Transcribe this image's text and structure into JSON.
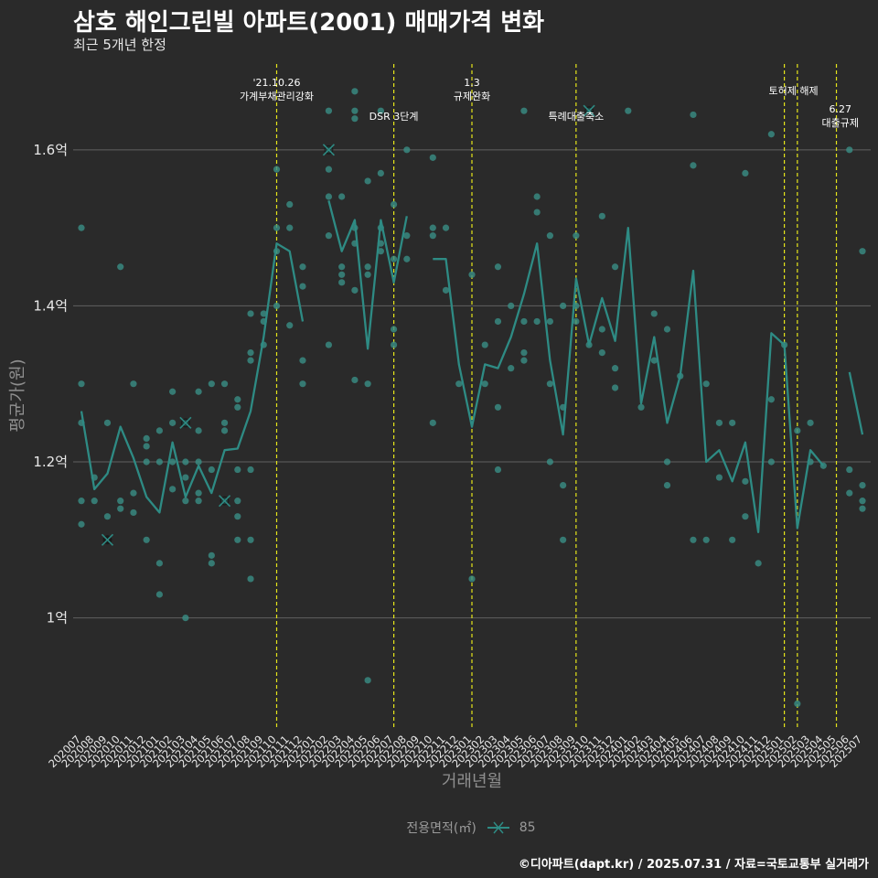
{
  "title": "삼호 해인그린빌 아파트(2001) 매매가격 변화",
  "subtitle": "최근 5개년 한정",
  "caption": "©디아파트(dapt.kr) / 2025.07.31 / 자료=국토교통부 실거래가",
  "legend": {
    "title": "전용면적(㎡)",
    "label": "85"
  },
  "colors": {
    "background": "#2a2a2a",
    "grid": "#606060",
    "line": "#2e8b84",
    "points": "#3a8f86",
    "vline": "#e6e61a",
    "text": "#ffffff"
  },
  "chart_data": {
    "type": "line",
    "xlabel": "거래년월",
    "ylabel": "평균가(원)",
    "ylim": [
      0.86,
      1.71
    ],
    "y_ticks": [
      {
        "value": 1.0,
        "label": "1억"
      },
      {
        "value": 1.2,
        "label": "1.2억"
      },
      {
        "value": 1.4,
        "label": "1.4억"
      },
      {
        "value": 1.6,
        "label": "1.6억"
      }
    ],
    "grid": true,
    "legend_position": "bottom",
    "categories": [
      "202007",
      "202008",
      "202009",
      "202010",
      "202011",
      "202012",
      "202101",
      "202102",
      "202103",
      "202104",
      "202105",
      "202106",
      "202107",
      "202108",
      "202109",
      "202110",
      "202111",
      "202112",
      "202201",
      "202202",
      "202203",
      "202204",
      "202205",
      "202206",
      "202207",
      "202208",
      "202209",
      "202210",
      "202211",
      "202212",
      "202301",
      "202302",
      "202303",
      "202304",
      "202305",
      "202306",
      "202307",
      "202308",
      "202309",
      "202310",
      "202311",
      "202312",
      "202401",
      "202402",
      "202403",
      "202404",
      "202405",
      "202406",
      "202407",
      "202408",
      "202409",
      "202410",
      "202411",
      "202412",
      "202501",
      "202502",
      "202503",
      "202504",
      "202505",
      "202506",
      "202507"
    ],
    "series": [
      {
        "name": "85",
        "values": [
          1.265,
          1.165,
          1.185,
          1.245,
          1.205,
          1.155,
          1.135,
          1.225,
          1.155,
          1.195,
          1.16,
          1.215,
          1.217,
          1.265,
          1.36,
          1.48,
          1.47,
          1.38,
          null,
          1.535,
          1.47,
          1.51,
          1.345,
          1.51,
          1.43,
          1.515,
          null,
          1.46,
          1.46,
          1.325,
          1.245,
          1.325,
          1.32,
          1.36,
          1.415,
          1.48,
          1.33,
          1.235,
          1.435,
          1.35,
          1.41,
          1.355,
          1.5,
          1.275,
          1.36,
          1.25,
          1.31,
          1.445,
          1.2,
          1.215,
          1.175,
          1.225,
          1.11,
          1.365,
          1.35,
          1.115,
          1.215,
          1.195,
          null,
          1.315,
          1.235
        ]
      }
    ],
    "transactions": [
      [
        0,
        1.5
      ],
      [
        0,
        1.3
      ],
      [
        0,
        1.25
      ],
      [
        0,
        1.15
      ],
      [
        0,
        1.12
      ],
      [
        1,
        1.18
      ],
      [
        1,
        1.15
      ],
      [
        2,
        1.25
      ],
      [
        2,
        1.13
      ],
      [
        3,
        1.45
      ],
      [
        3,
        1.15
      ],
      [
        3,
        1.14
      ],
      [
        4,
        1.3
      ],
      [
        4,
        1.16
      ],
      [
        4,
        1.135
      ],
      [
        5,
        1.23
      ],
      [
        5,
        1.22
      ],
      [
        5,
        1.2
      ],
      [
        5,
        1.1
      ],
      [
        6,
        1.24
      ],
      [
        6,
        1.2
      ],
      [
        6,
        1.07
      ],
      [
        6,
        1.03
      ],
      [
        7,
        1.29
      ],
      [
        7,
        1.25
      ],
      [
        7,
        1.2
      ],
      [
        7,
        1.165
      ],
      [
        8,
        1.25
      ],
      [
        8,
        1.2
      ],
      [
        8,
        1.18
      ],
      [
        8,
        1.15
      ],
      [
        8,
        1.0
      ],
      [
        9,
        1.29
      ],
      [
        9,
        1.24
      ],
      [
        9,
        1.2
      ],
      [
        9,
        1.16
      ],
      [
        9,
        1.15
      ],
      [
        10,
        1.3
      ],
      [
        10,
        1.19
      ],
      [
        10,
        1.08
      ],
      [
        10,
        1.07
      ],
      [
        11,
        1.3
      ],
      [
        11,
        1.25
      ],
      [
        11,
        1.24
      ],
      [
        11,
        1.15
      ],
      [
        12,
        1.28
      ],
      [
        12,
        1.27
      ],
      [
        12,
        1.19
      ],
      [
        12,
        1.15
      ],
      [
        12,
        1.13
      ],
      [
        12,
        1.1
      ],
      [
        13,
        1.39
      ],
      [
        13,
        1.34
      ],
      [
        13,
        1.33
      ],
      [
        13,
        1.19
      ],
      [
        13,
        1.1
      ],
      [
        13,
        1.05
      ],
      [
        14,
        1.39
      ],
      [
        14,
        1.38
      ],
      [
        14,
        1.35
      ],
      [
        15,
        1.575
      ],
      [
        15,
        1.5
      ],
      [
        15,
        1.47
      ],
      [
        15,
        1.4
      ],
      [
        16,
        1.53
      ],
      [
        16,
        1.5
      ],
      [
        16,
        1.375
      ],
      [
        17,
        1.45
      ],
      [
        17,
        1.425
      ],
      [
        17,
        1.33
      ],
      [
        17,
        1.3
      ],
      [
        19,
        1.65
      ],
      [
        19,
        1.6
      ],
      [
        19,
        1.575
      ],
      [
        19,
        1.54
      ],
      [
        19,
        1.49
      ],
      [
        19,
        1.35
      ],
      [
        20,
        1.54
      ],
      [
        20,
        1.45
      ],
      [
        20,
        1.44
      ],
      [
        20,
        1.43
      ],
      [
        21,
        1.675
      ],
      [
        21,
        1.65
      ],
      [
        21,
        1.64
      ],
      [
        21,
        1.5
      ],
      [
        21,
        1.48
      ],
      [
        21,
        1.42
      ],
      [
        21,
        1.305
      ],
      [
        22,
        1.56
      ],
      [
        22,
        1.45
      ],
      [
        22,
        1.44
      ],
      [
        22,
        1.3
      ],
      [
        22,
        0.92
      ],
      [
        23,
        1.65
      ],
      [
        23,
        1.57
      ],
      [
        23,
        1.5
      ],
      [
        23,
        1.48
      ],
      [
        23,
        1.47
      ],
      [
        24,
        1.53
      ],
      [
        24,
        1.46
      ],
      [
        24,
        1.37
      ],
      [
        24,
        1.35
      ],
      [
        25,
        1.6
      ],
      [
        25,
        1.49
      ],
      [
        25,
        1.46
      ],
      [
        27,
        1.59
      ],
      [
        27,
        1.5
      ],
      [
        27,
        1.49
      ],
      [
        27,
        1.25
      ],
      [
        28,
        1.5
      ],
      [
        28,
        1.42
      ],
      [
        29,
        1.3
      ],
      [
        30,
        1.44
      ],
      [
        30,
        1.05
      ],
      [
        31,
        1.35
      ],
      [
        31,
        1.3
      ],
      [
        32,
        1.45
      ],
      [
        32,
        1.38
      ],
      [
        32,
        1.27
      ],
      [
        32,
        1.19
      ],
      [
        33,
        1.4
      ],
      [
        33,
        1.32
      ],
      [
        34,
        1.65
      ],
      [
        34,
        1.38
      ],
      [
        34,
        1.34
      ],
      [
        34,
        1.33
      ],
      [
        35,
        1.54
      ],
      [
        35,
        1.52
      ],
      [
        35,
        1.38
      ],
      [
        36,
        1.49
      ],
      [
        36,
        1.38
      ],
      [
        36,
        1.3
      ],
      [
        36,
        1.2
      ],
      [
        37,
        1.4
      ],
      [
        37,
        1.27
      ],
      [
        37,
        1.17
      ],
      [
        37,
        1.1
      ],
      [
        38,
        1.49
      ],
      [
        38,
        1.4
      ],
      [
        38,
        1.38
      ],
      [
        39,
        1.65
      ],
      [
        39,
        1.35
      ],
      [
        40,
        1.515
      ],
      [
        40,
        1.37
      ],
      [
        40,
        1.34
      ],
      [
        41,
        1.45
      ],
      [
        41,
        1.32
      ],
      [
        41,
        1.295
      ],
      [
        42,
        1.65
      ],
      [
        43,
        1.27
      ],
      [
        44,
        1.39
      ],
      [
        44,
        1.33
      ],
      [
        45,
        1.37
      ],
      [
        45,
        1.2
      ],
      [
        45,
        1.17
      ],
      [
        46,
        1.31
      ],
      [
        47,
        1.645
      ],
      [
        47,
        1.58
      ],
      [
        47,
        1.1
      ],
      [
        48,
        1.3
      ],
      [
        48,
        1.1
      ],
      [
        49,
        1.25
      ],
      [
        49,
        1.18
      ],
      [
        50,
        1.25
      ],
      [
        50,
        1.1
      ],
      [
        51,
        1.57
      ],
      [
        51,
        1.175
      ],
      [
        51,
        1.13
      ],
      [
        52,
        1.07
      ],
      [
        53,
        1.62
      ],
      [
        53,
        1.28
      ],
      [
        53,
        1.2
      ],
      [
        54,
        1.35
      ],
      [
        55,
        1.24
      ],
      [
        55,
        0.89
      ],
      [
        56,
        1.25
      ],
      [
        56,
        1.2
      ],
      [
        57,
        1.195
      ],
      [
        59,
        1.6
      ],
      [
        59,
        1.19
      ],
      [
        59,
        1.16
      ],
      [
        60,
        1.47
      ],
      [
        60,
        1.17
      ],
      [
        60,
        1.15
      ],
      [
        60,
        1.14
      ]
    ],
    "highlighted": [
      [
        2,
        1.1
      ],
      [
        8,
        1.25
      ],
      [
        11,
        1.15
      ],
      [
        19,
        1.6
      ],
      [
        39,
        1.65
      ]
    ],
    "annotations": [
      {
        "x_index": 15,
        "lines": [
          "'21.10.26",
          "가계부채관리강화"
        ],
        "level": "high"
      },
      {
        "x_index": 24,
        "lines": [
          "DSR 3단계"
        ],
        "level": "low"
      },
      {
        "x_index": 30,
        "lines": [
          "1.3",
          "규제완화"
        ],
        "level": "high"
      },
      {
        "x_index": 38,
        "lines": [
          "특례대출축소"
        ],
        "level": "low"
      },
      {
        "x_index": 54.7,
        "lines": [
          "토허제 해제"
        ],
        "level": "high2"
      },
      {
        "x_index": 58.3,
        "lines": [
          "6.27",
          "대출규제"
        ],
        "level": "mid"
      }
    ],
    "vlines": [
      15,
      24,
      30,
      38,
      54,
      55,
      58
    ]
  }
}
